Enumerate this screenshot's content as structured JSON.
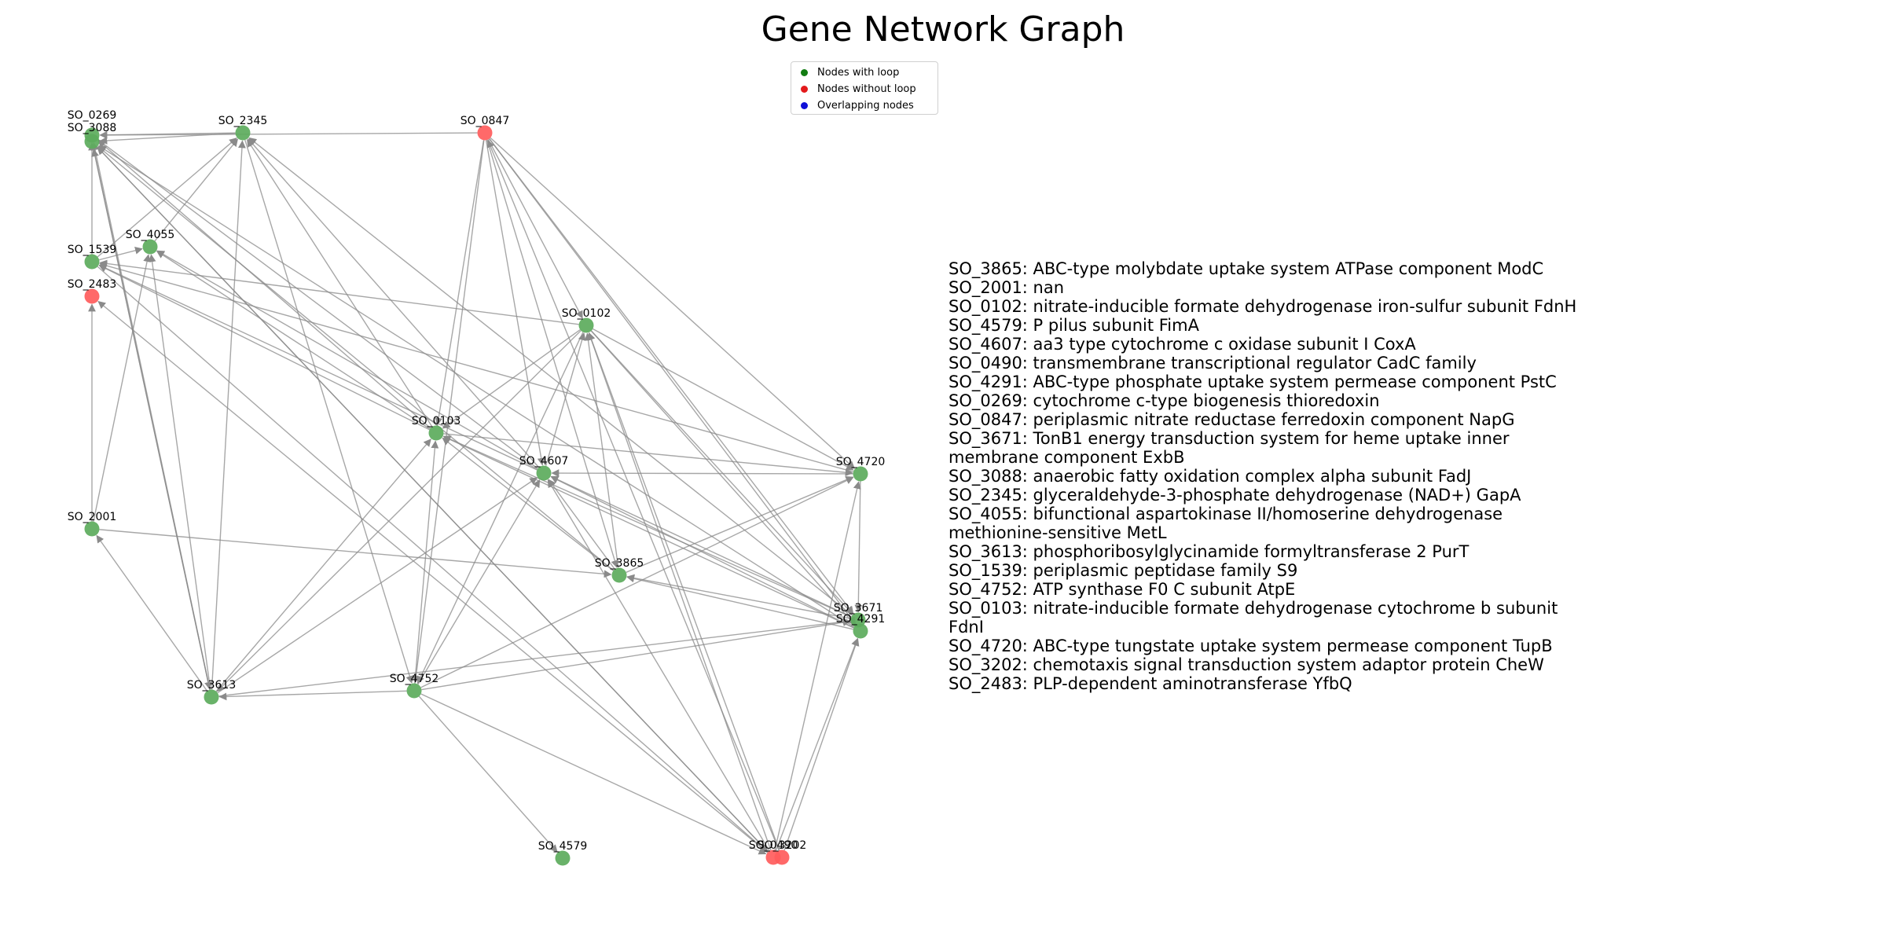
{
  "title": "Gene Network Graph",
  "legend": [
    {
      "label": "Nodes with loop",
      "color": "#127c12"
    },
    {
      "label": "Nodes without loop",
      "color": "#e31a1c"
    },
    {
      "label": "Overlapping nodes",
      "color": "#1010d8"
    }
  ],
  "colors": {
    "with_loop": "#5cab5c",
    "without_loop": "#ff5c5c",
    "edge": "#8a8a8a"
  },
  "nodes": [
    {
      "id": "SO_0269",
      "label": "SO_0269",
      "loop": true
    },
    {
      "id": "SO_3088",
      "label": "SO_3088",
      "loop": true
    },
    {
      "id": "SO_2345",
      "label": "SO_2345",
      "loop": true
    },
    {
      "id": "SO_0847",
      "label": "SO_0847",
      "loop": false
    },
    {
      "id": "SO_4055",
      "label": "SO_4055",
      "loop": true
    },
    {
      "id": "SO_1539",
      "label": "SO_1539",
      "loop": true
    },
    {
      "id": "SO_2483",
      "label": "SO_2483",
      "loop": false
    },
    {
      "id": "SO_0102",
      "label": "SO_0102",
      "loop": true
    },
    {
      "id": "SO_0103",
      "label": "SO_0103",
      "loop": true
    },
    {
      "id": "SO_4607",
      "label": "SO_4607",
      "loop": true
    },
    {
      "id": "SO_4720",
      "label": "SO_4720",
      "loop": true
    },
    {
      "id": "SO_2001",
      "label": "SO_2001",
      "loop": true
    },
    {
      "id": "SO_3865",
      "label": "SO_3865",
      "loop": true
    },
    {
      "id": "SO_3671",
      "label": "SO_3671",
      "loop": true
    },
    {
      "id": "SO_4291",
      "label": "SO_4291",
      "loop": true
    },
    {
      "id": "SO_3613",
      "label": "SO_3613",
      "loop": true
    },
    {
      "id": "SO_4752",
      "label": "SO_4752",
      "loop": true
    },
    {
      "id": "SO_4579",
      "label": "SO_4579",
      "loop": true
    },
    {
      "id": "SO_0490",
      "label": "SO_0490",
      "loop": false
    },
    {
      "id": "SO_3202",
      "label": "SO_3202",
      "loop": false
    }
  ],
  "edges": [
    [
      "SO_0847",
      "SO_0269"
    ],
    [
      "SO_2345",
      "SO_0269"
    ],
    [
      "SO_2345",
      "SO_3088"
    ],
    [
      "SO_4055",
      "SO_2345"
    ],
    [
      "SO_1539",
      "SO_2345"
    ],
    [
      "SO_3613",
      "SO_2345"
    ],
    [
      "SO_0103",
      "SO_2345"
    ],
    [
      "SO_4607",
      "SO_2345"
    ],
    [
      "SO_3671",
      "SO_2345"
    ],
    [
      "SO_3613",
      "SO_0269"
    ],
    [
      "SO_3613",
      "SO_3088"
    ],
    [
      "SO_1539",
      "SO_0269"
    ],
    [
      "SO_0103",
      "SO_0269"
    ],
    [
      "SO_4607",
      "SO_0269"
    ],
    [
      "SO_3865",
      "SO_3088"
    ],
    [
      "SO_4291",
      "SO_3088"
    ],
    [
      "SO_0490",
      "SO_3088"
    ],
    [
      "SO_4720",
      "SO_1539"
    ],
    [
      "SO_0102",
      "SO_1539"
    ],
    [
      "SO_0103",
      "SO_1539"
    ],
    [
      "SO_4607",
      "SO_1539"
    ],
    [
      "SO_0490",
      "SO_2483"
    ],
    [
      "SO_2001",
      "SO_2483"
    ],
    [
      "SO_3613",
      "SO_2001"
    ],
    [
      "SO_3613",
      "SO_4055"
    ],
    [
      "SO_2001",
      "SO_4055"
    ],
    [
      "SO_4607",
      "SO_4055"
    ],
    [
      "SO_0103",
      "SO_4055"
    ],
    [
      "SO_1539",
      "SO_4055"
    ],
    [
      "SO_0847",
      "SO_0103"
    ],
    [
      "SO_0847",
      "SO_4752"
    ],
    [
      "SO_0847",
      "SO_4720"
    ],
    [
      "SO_0847",
      "SO_3671"
    ],
    [
      "SO_0847",
      "SO_4291"
    ],
    [
      "SO_0847",
      "SO_3865"
    ],
    [
      "SO_0847",
      "SO_4607"
    ],
    [
      "SO_0847",
      "SO_0102"
    ],
    [
      "SO_0102",
      "SO_0103"
    ],
    [
      "SO_0102",
      "SO_4752"
    ],
    [
      "SO_0102",
      "SO_3613"
    ],
    [
      "SO_0102",
      "SO_4720"
    ],
    [
      "SO_0102",
      "SO_3671"
    ],
    [
      "SO_0102",
      "SO_4291"
    ],
    [
      "SO_4607",
      "SO_0102"
    ],
    [
      "SO_3865",
      "SO_0102"
    ],
    [
      "SO_0490",
      "SO_0102"
    ],
    [
      "SO_3202",
      "SO_0102"
    ],
    [
      "SO_0103",
      "SO_4720"
    ],
    [
      "SO_3865",
      "SO_0103"
    ],
    [
      "SO_4291",
      "SO_0103"
    ],
    [
      "SO_3671",
      "SO_0103"
    ],
    [
      "SO_4752",
      "SO_0103"
    ],
    [
      "SO_3613",
      "SO_0103"
    ],
    [
      "SO_4720",
      "SO_4607"
    ],
    [
      "SO_4752",
      "SO_4607"
    ],
    [
      "SO_3613",
      "SO_4607"
    ],
    [
      "SO_3671",
      "SO_4607"
    ],
    [
      "SO_4291",
      "SO_4607"
    ],
    [
      "SO_3865",
      "SO_4607"
    ],
    [
      "SO_0490",
      "SO_4607"
    ],
    [
      "SO_4720",
      "SO_3671"
    ],
    [
      "SO_3865",
      "SO_4720"
    ],
    [
      "SO_4752",
      "SO_4720"
    ],
    [
      "SO_0490",
      "SO_4720"
    ],
    [
      "SO_3671",
      "SO_3865"
    ],
    [
      "SO_4291",
      "SO_3865"
    ],
    [
      "SO_2001",
      "SO_3865"
    ],
    [
      "SO_4752",
      "SO_3671"
    ],
    [
      "SO_3613",
      "SO_3671"
    ],
    [
      "SO_3202",
      "SO_4291"
    ],
    [
      "SO_0490",
      "SO_4291"
    ],
    [
      "SO_4752",
      "SO_3613"
    ],
    [
      "SO_4752",
      "SO_4579"
    ],
    [
      "SO_4752",
      "SO_0490"
    ],
    [
      "SO_3088",
      "SO_0490"
    ],
    [
      "SO_1539",
      "SO_0490"
    ],
    [
      "SO_3202",
      "SO_0847"
    ],
    [
      "SO_2345",
      "SO_4752"
    ],
    [
      "SO_3088",
      "SO_3613"
    ]
  ],
  "descriptions": [
    "SO_3865: ABC-type molybdate uptake system ATPase component ModC",
    "SO_2001: nan",
    "SO_0102: nitrate-inducible formate dehydrogenase iron-sulfur subunit FdnH",
    "SO_4579: P pilus subunit FimA",
    "SO_4607: aa3 type cytochrome c oxidase subunit I CoxA",
    "SO_0490: transmembrane transcriptional regulator CadC family",
    "SO_4291: ABC-type phosphate uptake system permease component PstC",
    "SO_0269: cytochrome c-type biogenesis thioredoxin",
    "SO_0847: periplasmic nitrate reductase ferredoxin component NapG",
    "SO_3671: TonB1 energy transduction system for heme uptake inner membrane component ExbB",
    "SO_3088: anaerobic fatty oxidation complex alpha subunit FadJ",
    "SO_2345: glyceraldehyde-3-phosphate dehydrogenase (NAD+) GapA",
    "SO_4055: bifunctional aspartokinase II/homoserine dehydrogenase methionine-sensitive MetL",
    "SO_3613: phosphoribosylglycinamide formyltransferase 2 PurT",
    "SO_1539: periplasmic peptidase family S9",
    "SO_4752: ATP synthase F0 C subunit AtpE",
    "SO_0103: nitrate-inducible formate dehydrogenase cytochrome b subunit FdnI",
    "SO_4720: ABC-type tungstate uptake system permease component TupB",
    "SO_3202: chemotaxis signal transduction system adaptor protein CheW",
    "SO_2483: PLP-dependent aminotransferase YfbQ"
  ]
}
